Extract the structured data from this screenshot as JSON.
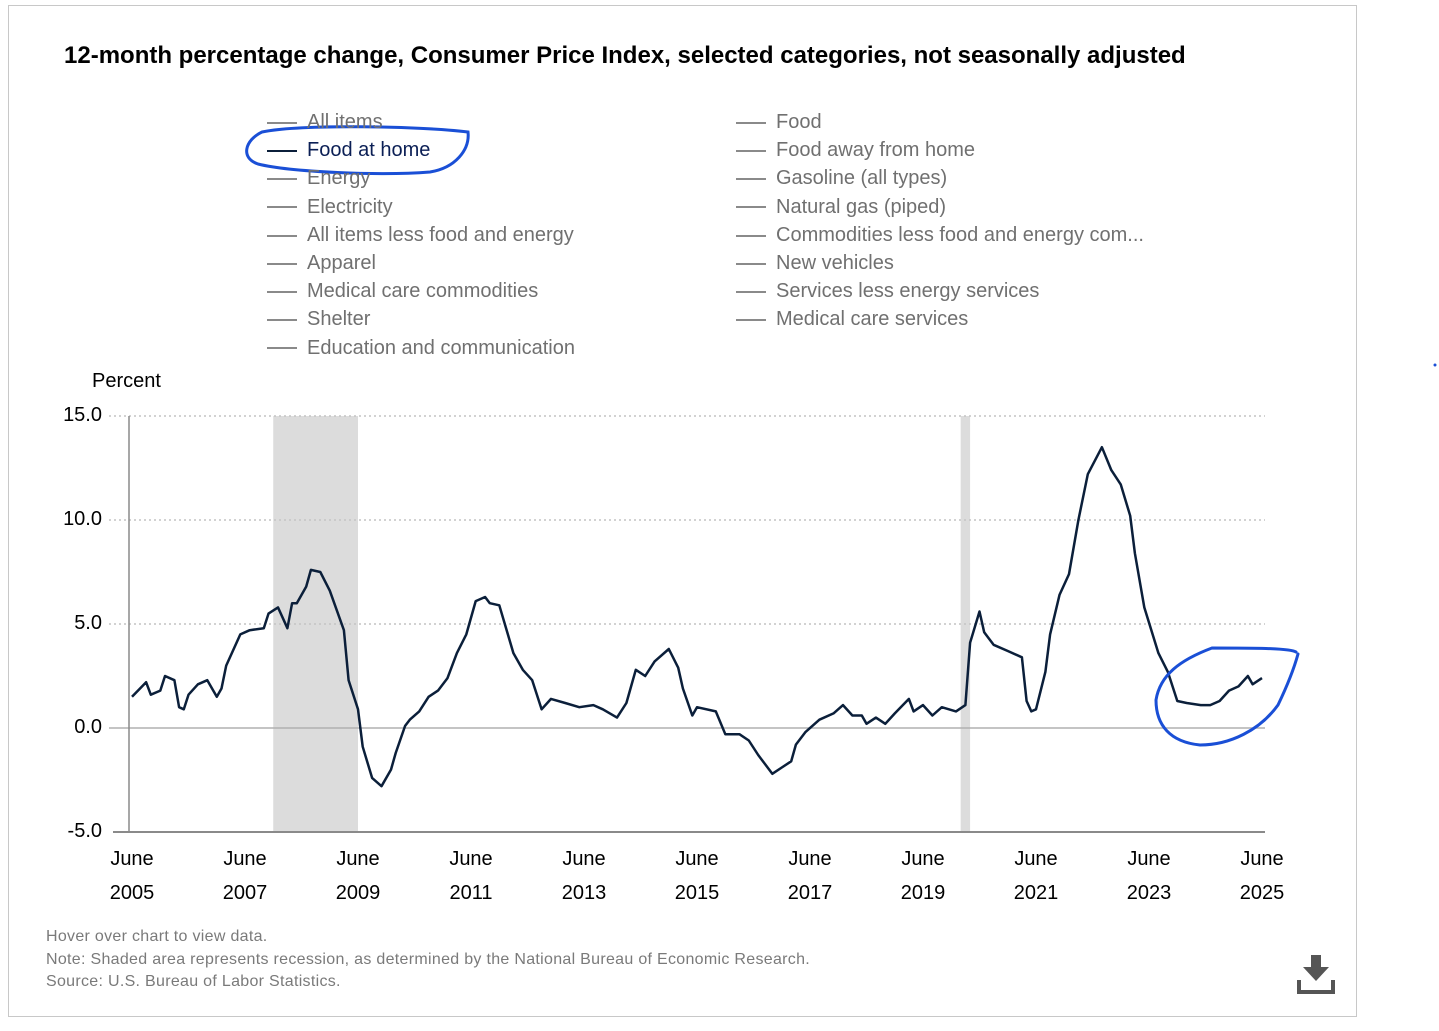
{
  "chart_data": {
    "type": "line",
    "title": "12-month percentage change, Consumer Price Index, selected categories, not seasonally adjusted",
    "y_label": "Percent",
    "legend": [
      "All items",
      "Food at home",
      "Energy",
      "Electricity",
      "All items less food and energy",
      "Apparel",
      "Medical care commodities",
      "Shelter",
      "Education and communication",
      "Food",
      "Food away from home",
      "Gasoline (all types)",
      "Natural gas (piped)",
      "Commodities less food and energy com...",
      "New vehicles",
      "Services less energy services",
      "Medical care services"
    ],
    "x": [
      "2005-06",
      "2005-09",
      "2005-10",
      "2005-12",
      "2006-01",
      "2006-03",
      "2006-04",
      "2006-05",
      "2006-06",
      "2006-08",
      "2006-10",
      "2006-12",
      "2007-01",
      "2007-02",
      "2007-05",
      "2007-07",
      "2007-10",
      "2007-11",
      "2008-01",
      "2008-03",
      "2008-04",
      "2008-05",
      "2008-07",
      "2008-08",
      "2008-10",
      "2008-12",
      "2009-03",
      "2009-04",
      "2009-06",
      "2009-07",
      "2009-09",
      "2009-11",
      "2010-01",
      "2010-02",
      "2010-04",
      "2010-05",
      "2010-07",
      "2010-09",
      "2010-11",
      "2011-01",
      "2011-03",
      "2011-05",
      "2011-07",
      "2011-09",
      "2011-10",
      "2011-12",
      "2012-03",
      "2012-05",
      "2012-07",
      "2012-09",
      "2012-11",
      "2013-02",
      "2013-05",
      "2013-08",
      "2013-10",
      "2014-01",
      "2014-03",
      "2014-04",
      "2014-05",
      "2014-07",
      "2014-09",
      "2014-12",
      "2015-02",
      "2015-03",
      "2015-05",
      "2015-06",
      "2015-10",
      "2015-12",
      "2016-03",
      "2016-05",
      "2016-07",
      "2016-10",
      "2016-12",
      "2017-02",
      "2017-03",
      "2017-05",
      "2017-08",
      "2017-11",
      "2018-01",
      "2018-03",
      "2018-05",
      "2018-06",
      "2018-08",
      "2018-10",
      "2018-12",
      "2019-03",
      "2019-04",
      "2019-06",
      "2019-08",
      "2019-10",
      "2020-01",
      "2020-03",
      "2020-04",
      "2020-06",
      "2020-07",
      "2020-09",
      "2020-12",
      "2021-03",
      "2021-04",
      "2021-05",
      "2021-06",
      "2021-08",
      "2021-09",
      "2021-11",
      "2022-01",
      "2022-03",
      "2022-05",
      "2022-08",
      "2022-10",
      "2022-12",
      "2023-02",
      "2023-03",
      "2023-05",
      "2023-08",
      "2023-10",
      "2023-12",
      "2024-02",
      "2024-05",
      "2024-07",
      "2024-09",
      "2024-11",
      "2025-01",
      "2025-03",
      "2025-04",
      "2025-06"
    ],
    "series": [
      {
        "name": "Food at home",
        "color": "#0b1f3a",
        "values": [
          1.5,
          2.2,
          1.6,
          1.8,
          2.5,
          2.3,
          1.0,
          0.9,
          1.6,
          2.1,
          2.3,
          1.5,
          1.9,
          3.0,
          4.5,
          4.7,
          4.8,
          5.5,
          5.8,
          4.8,
          6.0,
          6.0,
          6.8,
          7.6,
          7.5,
          6.6,
          4.7,
          2.3,
          0.9,
          -0.9,
          -2.4,
          -2.8,
          -2.0,
          -1.2,
          0.1,
          0.4,
          0.8,
          1.5,
          1.8,
          2.4,
          3.6,
          4.5,
          6.1,
          6.3,
          6.0,
          5.9,
          3.6,
          2.8,
          2.3,
          0.9,
          1.4,
          1.2,
          1.0,
          1.1,
          0.9,
          0.5,
          1.2,
          2.0,
          2.8,
          2.5,
          3.2,
          3.8,
          2.9,
          1.9,
          0.6,
          1.0,
          0.8,
          -0.3,
          -0.3,
          -0.6,
          -1.3,
          -2.2,
          -1.9,
          -1.6,
          -0.8,
          -0.2,
          0.4,
          0.7,
          1.1,
          0.6,
          0.6,
          0.2,
          0.5,
          0.2,
          0.7,
          1.4,
          0.8,
          1.1,
          0.6,
          1.0,
          0.8,
          1.1,
          4.1,
          5.6,
          4.6,
          4.0,
          3.7,
          3.4,
          1.3,
          0.8,
          0.9,
          2.7,
          4.5,
          6.4,
          7.4,
          10.0,
          12.2,
          13.5,
          12.4,
          11.7,
          10.2,
          8.4,
          5.8,
          3.6,
          2.7,
          1.3,
          1.2,
          1.1,
          1.1,
          1.3,
          1.8,
          2.0,
          2.5,
          2.1,
          2.4
        ]
      }
    ],
    "recessions": [
      [
        "2007-12",
        "2009-06"
      ],
      [
        "2020-02",
        "2020-04"
      ]
    ],
    "xlim": [
      "2005-06",
      "2025-06"
    ],
    "xticks": [
      {
        "value": "2005-06",
        "label": "June 2005"
      },
      {
        "value": "2007-06",
        "label": "June 2007"
      },
      {
        "value": "2009-06",
        "label": "June 2009"
      },
      {
        "value": "2011-06",
        "label": "June 2011"
      },
      {
        "value": "2013-06",
        "label": "June 2013"
      },
      {
        "value": "2015-06",
        "label": "June 2015"
      },
      {
        "value": "2017-06",
        "label": "June 2017"
      },
      {
        "value": "2019-06",
        "label": "June 2019"
      },
      {
        "value": "2021-06",
        "label": "June 2021"
      },
      {
        "value": "2023-06",
        "label": "June 2023"
      },
      {
        "value": "2025-06",
        "label": "June 2025"
      }
    ],
    "ylim": [
      -5,
      15
    ],
    "yticks": [
      {
        "value": -5,
        "label": "-5.0"
      },
      {
        "value": 0,
        "label": "0.0"
      },
      {
        "value": 5,
        "label": "5.0"
      },
      {
        "value": 10,
        "label": "10.0"
      },
      {
        "value": 15,
        "label": "15.0"
      }
    ],
    "grid": true,
    "footnotes": [
      "Hover over chart to view data.",
      "Note: Shaded area represents recession, as determined by the National Bureau of Economic Research.",
      "Source: U.S. Bureau of Labor Statistics."
    ]
  }
}
